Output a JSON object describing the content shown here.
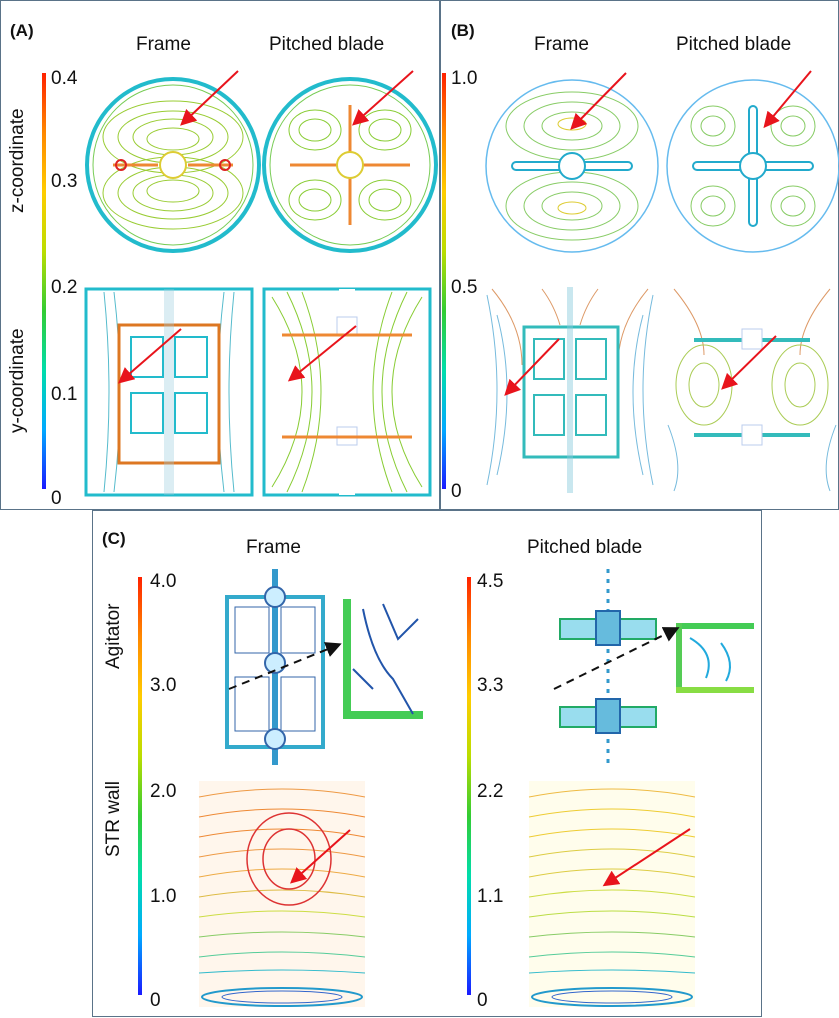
{
  "colors": {
    "colormap": [
      "#1a1aff",
      "#00aaff",
      "#00ddaa",
      "#33cc33",
      "#bbdd00",
      "#ffcc00",
      "#ff8800",
      "#ff2200"
    ],
    "arrow": "#e8141c",
    "panel_border": "#5a7388"
  },
  "panel_a": {
    "label": "(A)",
    "col_left": "Frame",
    "col_right": "Pitched blade",
    "axis_top": "z-coordinate",
    "axis_bottom": "y-coordinate",
    "ticks": [
      "0.4",
      "0.3",
      "0.2",
      "0.1",
      "0"
    ]
  },
  "panel_b": {
    "label": "(B)",
    "col_left": "Frame",
    "col_right": "Pitched blade",
    "ticks": [
      "1.0",
      "0.5",
      "0"
    ]
  },
  "panel_c": {
    "label": "(C)",
    "col_left": "Frame",
    "col_right": "Pitched blade",
    "axis_top": "Agitator",
    "axis_bottom": "STR wall",
    "ticks_left": [
      "4.0",
      "3.0",
      "2.0",
      "1.0",
      "0"
    ],
    "ticks_right": [
      "4.5",
      "3.3",
      "2.2",
      "1.1",
      "0"
    ]
  }
}
